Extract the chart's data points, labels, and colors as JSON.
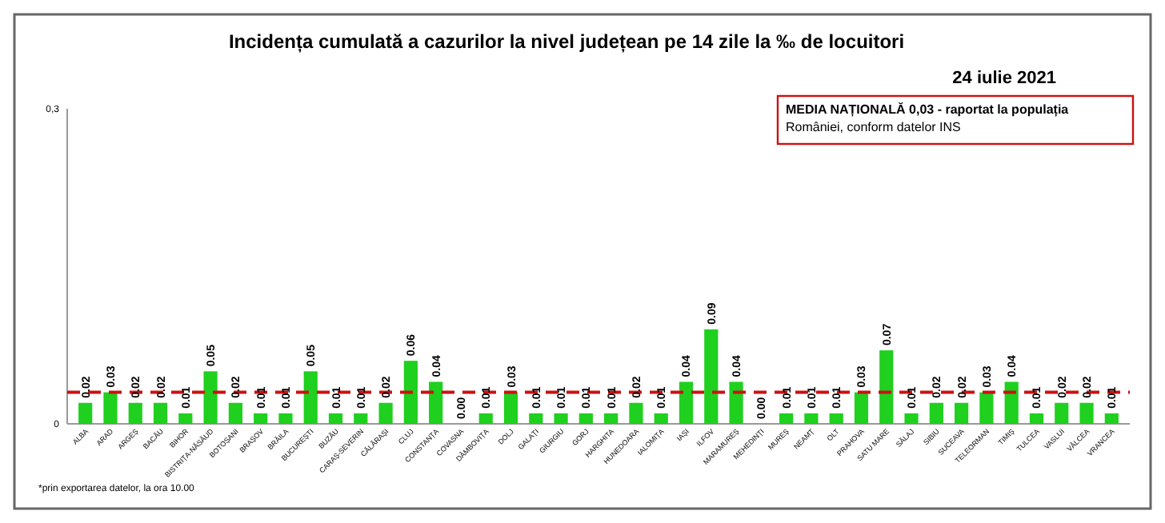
{
  "chart_data": {
    "type": "bar",
    "title": "Incidența cumulată a cazurilor la nivel județean pe 14 zile   la ‰ de locuitori",
    "subtitle": "24 iulie 2021",
    "categories": [
      "ALBA",
      "ARAD",
      "ARGEȘ",
      "BACĂU",
      "BIHOR",
      "BISTRIȚA-NĂSĂUD",
      "BOTOȘANI",
      "BRAȘOV",
      "BRĂILA",
      "BUCUREȘTI",
      "BUZĂU",
      "CARAȘ-SEVERIN",
      "CĂLĂRAȘI",
      "CLUJ",
      "CONSTANȚA",
      "COVASNA",
      "DÂMBOVIȚA",
      "DOLJ",
      "GALAȚI",
      "GIURGIU",
      "GORJ",
      "HARGHITA",
      "HUNEDOARA",
      "IALOMIȚA",
      "IAȘI",
      "ILFOV",
      "MARAMUREȘ",
      "MEHEDINȚI",
      "MUREȘ",
      "NEAMȚ",
      "OLT",
      "PRAHOVA",
      "SATU MARE",
      "SĂLAJ",
      "SIBIU",
      "SUCEAVA",
      "TELEORMAN",
      "TIMIȘ",
      "TULCEA",
      "VASLUI",
      "VÂLCEA",
      "VRANCEA"
    ],
    "values": [
      0.02,
      0.03,
      0.02,
      0.02,
      0.01,
      0.05,
      0.02,
      0.01,
      0.01,
      0.05,
      0.01,
      0.01,
      0.02,
      0.06,
      0.04,
      0.0,
      0.01,
      0.03,
      0.01,
      0.01,
      0.01,
      0.01,
      0.02,
      0.01,
      0.04,
      0.09,
      0.04,
      0.0,
      0.01,
      0.01,
      0.01,
      0.03,
      0.07,
      0.01,
      0.02,
      0.02,
      0.03,
      0.04,
      0.01,
      0.02,
      0.02,
      0.01
    ],
    "value_labels": [
      "0.02",
      "0.03",
      "0.02",
      "0.02",
      "0.01",
      "0.05",
      "0.02",
      "0.01",
      "0.01",
      "0.05",
      "0.01",
      "0.01",
      "0.02",
      "0.06",
      "0.04",
      "0.00",
      "0.01",
      "0.03",
      "0.01",
      "0.01",
      "0.01",
      "0.01",
      "0.02",
      "0.01",
      "0.04",
      "0.09",
      "0.04",
      "0.00",
      "0.01",
      "0.01",
      "0.01",
      "0.03",
      "0.07",
      "0.01",
      "0.02",
      "0.02",
      "0.03",
      "0.04",
      "0.01",
      "0.02",
      "0.02",
      "0.01"
    ],
    "color": "#1fd01f",
    "ylim": [
      0,
      0.3
    ],
    "yticks": [
      {
        "value": 0,
        "label": "0"
      },
      {
        "value": 0.3,
        "label": "0,3"
      }
    ],
    "grid": false,
    "ref_lines": [
      {
        "axis": "y",
        "value": 0.03,
        "color": "#cc1111",
        "line_style": "dashed"
      }
    ],
    "annotations": [
      "MEDIA NAȚIONALĂ 0,03 - raportat la populația României, conform datelor INS",
      "*prin exportarea datelor, la ora 10.00"
    ]
  }
}
